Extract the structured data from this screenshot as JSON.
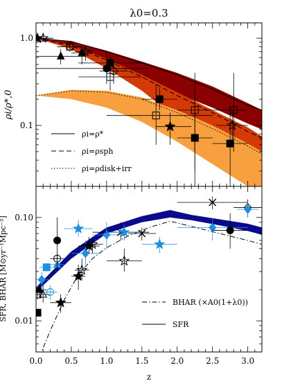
{
  "figure_title": "λ0=0.3",
  "chart_data": [
    {
      "type": "line",
      "panel": "top",
      "title": "λ0=0.3",
      "ylabel": "ρi/ρ*,0",
      "xlim": [
        0,
        3.2
      ],
      "ylim": [
        0.02,
        1.5
      ],
      "yscale": "log",
      "y_ticks": [
        {
          "value": 0.1,
          "label": "0.1"
        },
        {
          "value": 1.0,
          "label": "1.0"
        }
      ],
      "bands": [
        {
          "color": "#8b0000",
          "lower": [
            [
              0,
              1.0
            ],
            [
              0.5,
              0.8
            ],
            [
              1.0,
              0.55
            ],
            [
              1.5,
              0.36
            ],
            [
              2.0,
              0.23
            ],
            [
              2.5,
              0.16
            ],
            [
              3.0,
              0.105
            ],
            [
              3.2,
              0.09
            ]
          ],
          "upper": [
            [
              0,
              1.0
            ],
            [
              0.5,
              0.92
            ],
            [
              1.0,
              0.72
            ],
            [
              1.5,
              0.54
            ],
            [
              2.0,
              0.4
            ],
            [
              2.5,
              0.28
            ],
            [
              3.0,
              0.18
            ],
            [
              3.2,
              0.15
            ]
          ]
        },
        {
          "color": "#d33a06",
          "lower": [
            [
              0,
              1.0
            ],
            [
              0.5,
              0.75
            ],
            [
              1.0,
              0.45
            ],
            [
              1.5,
              0.25
            ],
            [
              2.0,
              0.12
            ],
            [
              2.5,
              0.06
            ],
            [
              3.0,
              0.03
            ],
            [
              3.2,
              0.022
            ]
          ],
          "upper": [
            [
              0,
              1.0
            ],
            [
              0.5,
              0.84
            ],
            [
              1.0,
              0.58
            ],
            [
              1.5,
              0.38
            ],
            [
              2.0,
              0.24
            ],
            [
              2.5,
              0.15
            ],
            [
              3.0,
              0.095
            ],
            [
              3.2,
              0.075
            ]
          ]
        },
        {
          "color": "#f8a040",
          "lower": [
            [
              0,
              0.22
            ],
            [
              0.5,
              0.2
            ],
            [
              1.0,
              0.16
            ],
            [
              1.5,
              0.11
            ],
            [
              2.0,
              0.065
            ],
            [
              2.5,
              0.036
            ],
            [
              3.0,
              0.02
            ],
            [
              3.2,
              0.016
            ]
          ],
          "upper": [
            [
              0,
              0.22
            ],
            [
              0.5,
              0.255
            ],
            [
              1.0,
              0.25
            ],
            [
              1.5,
              0.21
            ],
            [
              2.0,
              0.15
            ],
            [
              2.5,
              0.1
            ],
            [
              3.0,
              0.062
            ],
            [
              3.2,
              0.05
            ]
          ]
        }
      ],
      "series": [
        {
          "style": "solid",
          "points": [
            [
              0,
              1.0
            ],
            [
              0.5,
              0.92
            ],
            [
              1.0,
              0.7
            ],
            [
              1.5,
              0.52
            ],
            [
              2.0,
              0.38
            ],
            [
              2.5,
              0.26
            ],
            [
              3.0,
              0.17
            ],
            [
              3.2,
              0.15
            ]
          ]
        },
        {
          "style": "dashed",
          "points": [
            [
              0,
              1.0
            ],
            [
              0.5,
              0.82
            ],
            [
              1.0,
              0.56
            ],
            [
              1.5,
              0.36
            ],
            [
              2.0,
              0.22
            ],
            [
              2.5,
              0.14
            ],
            [
              3.0,
              0.085
            ],
            [
              3.2,
              0.072
            ]
          ]
        },
        {
          "style": "dotted",
          "points": [
            [
              0,
              0.22
            ],
            [
              0.5,
              0.25
            ],
            [
              1.0,
              0.24
            ],
            [
              1.5,
              0.2
            ],
            [
              2.0,
              0.14
            ],
            [
              2.5,
              0.092
            ],
            [
              3.0,
              0.058
            ],
            [
              3.2,
              0.047
            ]
          ]
        }
      ],
      "legend": {
        "placement": "bottom-left",
        "entries": [
          {
            "style": "solid",
            "label": "ρi=ρ*"
          },
          {
            "style": "dashed",
            "label": "ρi=ρsph"
          },
          {
            "style": "dotted",
            "label": "ρi=ρdisk+irr"
          }
        ]
      },
      "points": [
        {
          "x": 0.02,
          "y": 1.0,
          "m": "star-f",
          "xl": 0,
          "xh": 0.2,
          "yl": 0.9,
          "yh": 1.1
        },
        {
          "x": 0.1,
          "y": 1.0,
          "m": "star-o",
          "xl": 0,
          "xh": 0.25,
          "yl": 0.9,
          "yh": 1.1
        },
        {
          "x": 0.48,
          "y": 0.8,
          "m": "circle-o",
          "xl": 0.3,
          "xh": 0.65,
          "yl": 0.7,
          "yh": 0.9
        },
        {
          "x": 0.48,
          "y": 0.8,
          "m": "square-o",
          "xl": 0.3,
          "xh": 0.65,
          "yl": 0.7,
          "yh": 0.9
        },
        {
          "x": 0.35,
          "y": 0.62,
          "m": "tri-f",
          "xl": 0,
          "xh": 0.7,
          "yl": 0.5,
          "yh": 0.75
        },
        {
          "x": 0.65,
          "y": 0.68,
          "m": "tri-f",
          "xl": 0.5,
          "xh": 0.8,
          "yl": 0.5,
          "yh": 0.8
        },
        {
          "x": 0.7,
          "y": 0.7,
          "m": "star-o",
          "xl": 0.55,
          "xh": 0.8,
          "yl": 0.55,
          "yh": 0.8
        },
        {
          "x": 1.0,
          "y": 0.45,
          "m": "circle-f",
          "xl": 0,
          "xh": 1.6,
          "yl": 0.3,
          "yh": 0.7
        },
        {
          "x": 1.05,
          "y": 0.52,
          "m": "square-f",
          "xl": 0.6,
          "xh": 1.55,
          "yl": 0.36,
          "yh": 0.66
        },
        {
          "x": 1.05,
          "y": 0.36,
          "m": "square-o",
          "xl": 0.6,
          "xh": 1.5,
          "yl": 0.25,
          "yh": 0.5
        },
        {
          "x": 1.1,
          "y": 0.42,
          "m": "circle-o",
          "xl": 0.9,
          "xh": 1.3,
          "yl": 0.3,
          "yh": 0.55
        },
        {
          "x": 1.75,
          "y": 0.2,
          "m": "square-f",
          "xl": 1.5,
          "xh": 2.0,
          "yl": 0.15,
          "yh": 0.27
        },
        {
          "x": 1.7,
          "y": 0.13,
          "m": "square-o",
          "xl": 1.0,
          "xh": 2.5,
          "yl": 0.06,
          "yh": 0.3
        },
        {
          "x": 1.9,
          "y": 0.097,
          "m": "star-f",
          "xl": 1.7,
          "xh": 2.2,
          "yl": 0.06,
          "yh": 0.14
        },
        {
          "x": 2.25,
          "y": 0.15,
          "m": "square-o",
          "xl": 2.0,
          "xh": 2.5,
          "yl": 0.03,
          "yh": 0.4
        },
        {
          "x": 2.25,
          "y": 0.072,
          "m": "square-f",
          "xl": 2.0,
          "xh": 2.5,
          "yl": 0.02,
          "yh": 0.2
        },
        {
          "x": 2.75,
          "y": 0.062,
          "m": "square-f",
          "xl": 2.5,
          "xh": 3.0,
          "yl": 0.02,
          "yh": 0.15
        },
        {
          "x": 2.8,
          "y": 0.15,
          "m": "square-o",
          "xl": 2.5,
          "xh": 3.0,
          "yl": 0.05,
          "yh": 0.4
        },
        {
          "x": 2.78,
          "y": 0.1,
          "m": "star-o",
          "xl": 2.55,
          "xh": 3.0,
          "yl": 0.06,
          "yh": 0.15
        }
      ]
    },
    {
      "type": "line",
      "panel": "bottom",
      "xlabel": "z",
      "ylabel": "SFR, BHAR [M⊙yr⁻¹Mpc⁻³]",
      "xlim": [
        0,
        3.2
      ],
      "ylim": [
        0.005,
        0.2
      ],
      "yscale": "log",
      "x_ticks": [
        {
          "value": 0.0,
          "label": "0.0"
        },
        {
          "value": 0.5,
          "label": "0.5"
        },
        {
          "value": 1.0,
          "label": "1.0"
        },
        {
          "value": 1.5,
          "label": "1.5"
        },
        {
          "value": 2.0,
          "label": "2.0"
        },
        {
          "value": 2.5,
          "label": "2.5"
        },
        {
          "value": 3.0,
          "label": "3.0"
        }
      ],
      "y_ticks": [
        {
          "value": 0.01,
          "label": "0.01"
        },
        {
          "value": 0.1,
          "label": "0.10"
        }
      ],
      "series": [
        {
          "name": "SFR",
          "style": "band",
          "color": "#0a0a8c",
          "lower": [
            [
              0,
              0.019
            ],
            [
              0.5,
              0.04
            ],
            [
              1.0,
              0.07
            ],
            [
              1.5,
              0.09
            ],
            [
              1.9,
              0.1
            ],
            [
              2.2,
              0.094
            ],
            [
              2.6,
              0.084
            ],
            [
              3.0,
              0.074
            ],
            [
              3.2,
              0.068
            ]
          ],
          "upper": [
            [
              0,
              0.021
            ],
            [
              0.5,
              0.047
            ],
            [
              1.0,
              0.08
            ],
            [
              1.5,
              0.103
            ],
            [
              1.9,
              0.118
            ],
            [
              2.2,
              0.106
            ],
            [
              2.6,
              0.096
            ],
            [
              3.0,
              0.087
            ],
            [
              3.2,
              0.08
            ]
          ]
        },
        {
          "name": "BHAR (×A0(1+λ0))",
          "style": "dashdot",
          "points": [
            [
              0.05,
              0.0045
            ],
            [
              0.2,
              0.008
            ],
            [
              0.4,
              0.016
            ],
            [
              0.6,
              0.028
            ],
            [
              0.8,
              0.04
            ],
            [
              1.0,
              0.051
            ],
            [
              1.3,
              0.066
            ],
            [
              1.6,
              0.08
            ],
            [
              1.9,
              0.092
            ],
            [
              2.2,
              0.082
            ],
            [
              2.6,
              0.07
            ],
            [
              3.0,
              0.06
            ],
            [
              3.2,
              0.055
            ]
          ]
        }
      ],
      "legend": {
        "placement": "bottom-right",
        "entries": [
          {
            "style": "dashdot",
            "label": "BHAR (×A0(1+λ0))"
          },
          {
            "style": "solid",
            "label": "SFR"
          }
        ]
      },
      "points": [
        {
          "x": 0.02,
          "y": 0.012,
          "m": "square-f",
          "xl": 0,
          "xh": 0.05,
          "yl": 0.011,
          "yh": 0.013
        },
        {
          "x": 0.02,
          "y": 0.018,
          "m": "square-o",
          "xl": 0,
          "xh": 0.06,
          "yl": 0.016,
          "yh": 0.02
        },
        {
          "x": 0.05,
          "y": 0.02,
          "m": "tri-f",
          "xl": 0,
          "xh": 0.15,
          "yl": 0.017,
          "yh": 0.023
        },
        {
          "x": 0.1,
          "y": 0.018,
          "m": "tri-o",
          "xl": 0,
          "xh": 0.2,
          "yl": 0.015,
          "yh": 0.022
        },
        {
          "x": 0.08,
          "y": 0.025,
          "m": "diamond-b",
          "xl": 0,
          "xh": 0.2,
          "yl": 0.02,
          "yh": 0.03
        },
        {
          "x": 0.15,
          "y": 0.033,
          "m": "square-b",
          "xl": 0.05,
          "xh": 0.25,
          "yl": 0.03,
          "yh": 0.036
        },
        {
          "x": 0.2,
          "y": 0.019,
          "m": "circle-bo",
          "xl": 0.1,
          "xh": 0.3,
          "yl": 0.016,
          "yh": 0.022
        },
        {
          "x": 0.3,
          "y": 0.04,
          "m": "circle-o",
          "xl": 0.2,
          "xh": 0.4,
          "yl": 0.035,
          "yh": 0.045
        },
        {
          "x": 0.3,
          "y": 0.035,
          "m": "tri-b",
          "xl": 0.2,
          "xh": 0.4,
          "yl": 0.03,
          "yh": 0.04
        },
        {
          "x": 0.3,
          "y": 0.06,
          "m": "circle-f",
          "xl": 0.25,
          "xh": 0.35,
          "yl": 0.03,
          "yh": 0.1
        },
        {
          "x": 0.35,
          "y": 0.015,
          "m": "star-f",
          "xl": 0.2,
          "xh": 0.5,
          "yl": 0.012,
          "yh": 0.018
        },
        {
          "x": 0.6,
          "y": 0.078,
          "m": "star-b",
          "xl": 0.4,
          "xh": 0.8,
          "yl": 0.065,
          "yh": 0.095
        },
        {
          "x": 0.6,
          "y": 0.027,
          "m": "star-f",
          "xl": 0.5,
          "xh": 0.7,
          "yl": 0.02,
          "yh": 0.035
        },
        {
          "x": 0.65,
          "y": 0.031,
          "m": "star-o",
          "xl": 0.55,
          "xh": 0.75,
          "yl": 0.025,
          "yh": 0.04
        },
        {
          "x": 0.7,
          "y": 0.045,
          "m": "diamond-b",
          "xl": 0.5,
          "xh": 0.9,
          "yl": 0.035,
          "yh": 0.06
        },
        {
          "x": 0.75,
          "y": 0.053,
          "m": "star-f",
          "xl": 0.6,
          "xh": 0.9,
          "yl": 0.045,
          "yh": 0.065
        },
        {
          "x": 0.8,
          "y": 0.055,
          "m": "star-o",
          "xl": 0.65,
          "xh": 0.95,
          "yl": 0.045,
          "yh": 0.065
        },
        {
          "x": 1.0,
          "y": 0.068,
          "m": "diamond-b",
          "xl": 0.8,
          "xh": 1.2,
          "yl": 0.05,
          "yh": 0.09
        },
        {
          "x": 1.2,
          "y": 0.072,
          "m": "cross-o",
          "xl": 0.8,
          "xh": 1.6,
          "yl": 0.06,
          "yh": 0.09
        },
        {
          "x": 1.25,
          "y": 0.038,
          "m": "star-o",
          "xl": 1.0,
          "xh": 1.5,
          "yl": 0.03,
          "yh": 0.05
        },
        {
          "x": 1.25,
          "y": 0.072,
          "m": "star-b",
          "xl": 1.0,
          "xh": 1.5,
          "yl": 0.06,
          "yh": 0.085
        },
        {
          "x": 1.5,
          "y": 0.07,
          "m": "cross-o",
          "xl": 1.3,
          "xh": 1.7,
          "yl": 0.06,
          "yh": 0.08
        },
        {
          "x": 1.75,
          "y": 0.055,
          "m": "star-b",
          "xl": 1.5,
          "xh": 2.0,
          "yl": 0.045,
          "yh": 0.065
        },
        {
          "x": 2.5,
          "y": 0.14,
          "m": "cross-o",
          "xl": 2.0,
          "xh": 3.0,
          "yl": 0.12,
          "yh": 0.16
        },
        {
          "x": 2.5,
          "y": 0.08,
          "m": "diamond-b",
          "xl": 2.0,
          "xh": 3.0,
          "yl": 0.06,
          "yh": 0.1
        },
        {
          "x": 2.75,
          "y": 0.075,
          "m": "circle-f",
          "xl": 2.5,
          "xh": 3.0,
          "yl": 0.05,
          "yh": 0.11
        },
        {
          "x": 3.0,
          "y": 0.125,
          "m": "diamond-o",
          "xl": 2.8,
          "xh": 3.2,
          "yl": 0.1,
          "yh": 0.15
        },
        {
          "x": 3.0,
          "y": 0.12,
          "m": "diamond-b",
          "xl": 2.85,
          "xh": 3.15,
          "yl": 0.1,
          "yh": 0.14
        }
      ]
    }
  ]
}
